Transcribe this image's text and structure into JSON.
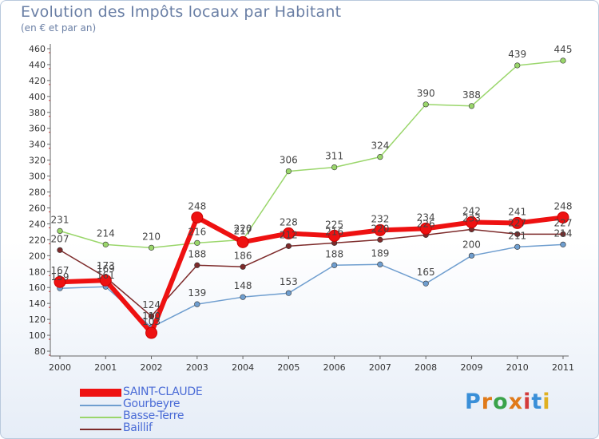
{
  "title": "Evolution des Impôts locaux par Habitant",
  "subtitle": "(en € et par an)",
  "brand": {
    "letters": [
      "P",
      "r",
      "o",
      "x",
      "i",
      "t",
      "i"
    ],
    "colors": [
      "#3a8fd8",
      "#e07a1a",
      "#3aa34a",
      "#e07a1a",
      "#d33a3a",
      "#3a8fd8",
      "#e0b020"
    ]
  },
  "chart_data": {
    "type": "line",
    "title": "Evolution des Impôts locaux par Habitant",
    "subtitle": "(en € et par an)",
    "categories": [
      "2000",
      "2001",
      "2002",
      "2003",
      "2004",
      "2005",
      "2006",
      "2007",
      "2008",
      "2009",
      "2010",
      "2011"
    ],
    "ylim": [
      80,
      460
    ],
    "yticks": [
      80,
      100,
      120,
      140,
      160,
      180,
      200,
      220,
      240,
      260,
      280,
      300,
      320,
      340,
      360,
      380,
      400,
      420,
      440,
      460
    ],
    "grid": false,
    "legend_position": "bottom-left",
    "series": [
      {
        "name": "Basse-Terre",
        "color": "#9ad66b",
        "values": [
          231,
          214,
          210,
          216,
          220,
          306,
          311,
          324,
          390,
          388,
          439,
          445
        ],
        "labels": [
          "231",
          "214",
          "210",
          "216",
          "220",
          "306",
          "311",
          "324",
          "390",
          "388",
          "439",
          "445"
        ]
      },
      {
        "name": "Gourbeyre",
        "color": "#6f9ecf",
        "values": [
          159,
          161,
          110,
          139,
          148,
          153,
          188,
          189,
          165,
          200,
          211,
          214
        ],
        "labels": [
          "159",
          "161",
          "110",
          "139",
          "148",
          "153",
          "188",
          "189",
          "165",
          "200",
          "211",
          "214"
        ]
      },
      {
        "name": "Baillif",
        "color": "#7d2a2a",
        "values": [
          207,
          173,
          124,
          188,
          186,
          212,
          216,
          220,
          226,
          233,
          227,
          227
        ],
        "labels": [
          "207",
          "173",
          "124",
          "188",
          "186",
          "212",
          "216",
          "220",
          "226",
          "233",
          "227",
          "227"
        ]
      },
      {
        "name": "SAINT-CLAUDE",
        "color": "#ee1111",
        "values": [
          167,
          169,
          103,
          248,
          217,
          228,
          225,
          232,
          234,
          242,
          241,
          248
        ],
        "labels": [
          "167",
          "169",
          "103",
          "248",
          "217",
          "228",
          "225",
          "232",
          "234",
          "242",
          "241",
          "248"
        ]
      }
    ],
    "legend_order": [
      "SAINT-CLAUDE",
      "Gourbeyre",
      "Basse-Terre",
      "Baillif"
    ]
  }
}
